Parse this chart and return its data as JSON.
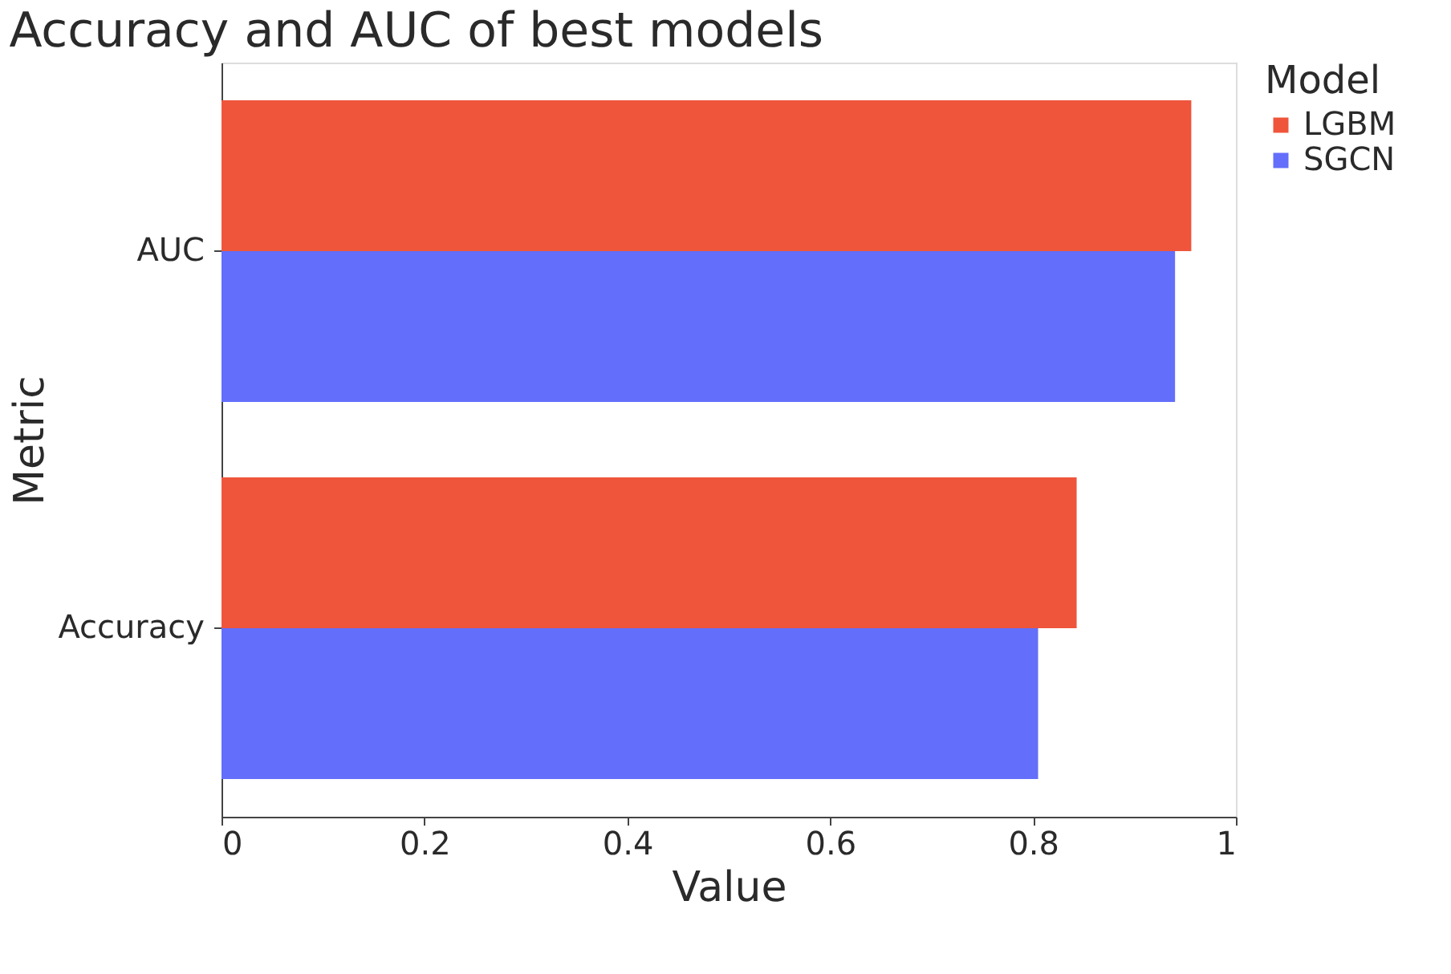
{
  "chart_data": {
    "type": "bar",
    "orientation": "horizontal",
    "title": "Accuracy and AUC of best models",
    "xlabel": "Value",
    "ylabel": "Metric",
    "legend_title": "Model",
    "categories": [
      "AUC",
      "Accuracy"
    ],
    "series": [
      {
        "name": "LGBM",
        "color": "#ef553b",
        "values": [
          0.956,
          0.843
        ]
      },
      {
        "name": "SGCN",
        "color": "#636efa",
        "values": [
          0.94,
          0.805
        ]
      }
    ],
    "xlim": [
      0,
      1
    ],
    "xticks": [
      0,
      0.2,
      0.4,
      0.6,
      0.8,
      1
    ],
    "grid": false,
    "legend": "top right"
  }
}
